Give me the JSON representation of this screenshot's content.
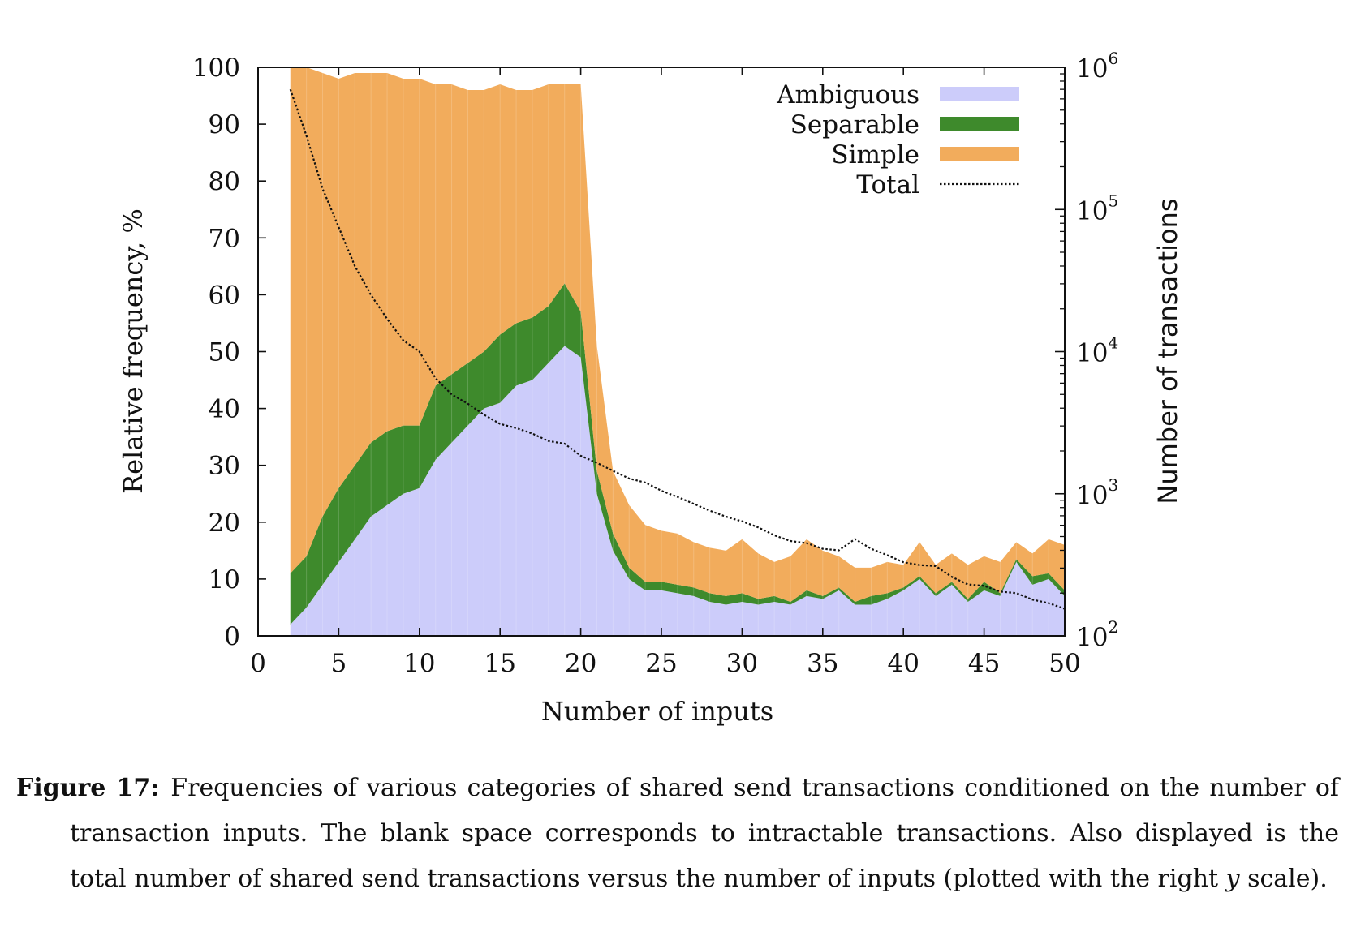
{
  "chart_data": {
    "type": "area",
    "stacked": true,
    "xlabel": "Number of inputs",
    "ylabel": "Relative frequency, %",
    "y2label": "Number of transactions",
    "xlim": [
      0,
      50
    ],
    "ylim": [
      0,
      100
    ],
    "y2lim": [
      100,
      1000000
    ],
    "y2scale": "log",
    "x_ticks": [
      "0",
      "5",
      "10",
      "15",
      "20",
      "25",
      "30",
      "35",
      "40",
      "45",
      "50"
    ],
    "y_ticks": [
      "0",
      "10",
      "20",
      "30",
      "40",
      "50",
      "60",
      "70",
      "80",
      "90",
      "100"
    ],
    "y2_ticks": [
      {
        "base": "10",
        "exp": "2"
      },
      {
        "base": "10",
        "exp": "3"
      },
      {
        "base": "10",
        "exp": "4"
      },
      {
        "base": "10",
        "exp": "5"
      },
      {
        "base": "10",
        "exp": "6"
      }
    ],
    "legend_position": "top-right",
    "grid": false,
    "x": [
      2,
      3,
      4,
      5,
      6,
      7,
      8,
      9,
      10,
      11,
      12,
      13,
      14,
      15,
      16,
      17,
      18,
      19,
      20,
      21,
      22,
      23,
      24,
      25,
      26,
      27,
      28,
      29,
      30,
      31,
      32,
      33,
      34,
      35,
      36,
      37,
      38,
      39,
      40,
      41,
      42,
      43,
      44,
      45,
      46,
      47,
      48,
      49,
      50
    ],
    "series": [
      {
        "name": "Ambiguous",
        "color": "#ccccfa",
        "values": [
          2,
          5,
          9,
          13,
          17,
          21,
          23,
          25,
          26,
          31,
          34,
          37,
          40,
          41,
          44,
          45,
          48,
          51,
          49,
          25,
          15,
          10,
          8,
          8,
          7.5,
          7,
          6,
          5.5,
          6,
          5.5,
          6,
          5.5,
          7,
          6.5,
          8,
          5.5,
          5.5,
          6.5,
          8,
          10,
          7,
          9,
          6,
          8,
          7,
          13,
          9,
          10,
          7
        ]
      },
      {
        "name": "Separable",
        "color": "#3e8a2c",
        "values": [
          9,
          9,
          12,
          13,
          13,
          13,
          13,
          12,
          11,
          13,
          12,
          11,
          10,
          12,
          11,
          11,
          10,
          11,
          8,
          4,
          3,
          2,
          1.5,
          1.5,
          1.5,
          1.5,
          1.5,
          1.5,
          1.5,
          1,
          1,
          0.5,
          1,
          0.5,
          0.5,
          0.5,
          1.5,
          1,
          0.5,
          0.5,
          0.5,
          0.5,
          0.5,
          1.5,
          0.5,
          0.5,
          1.5,
          1,
          1
        ]
      },
      {
        "name": "Simple",
        "color": "#f2ac5c",
        "values": [
          89,
          86,
          78,
          72,
          69,
          65,
          63,
          61,
          61,
          53,
          51,
          48,
          46,
          44,
          41,
          40,
          39,
          35,
          40,
          22,
          11,
          11,
          10,
          9,
          9,
          8,
          8,
          8,
          9.5,
          8,
          6,
          8,
          9,
          8,
          5.5,
          6,
          5,
          5.5,
          4,
          6,
          5,
          5,
          6,
          4.5,
          5.5,
          3,
          4,
          6,
          8
        ]
      },
      {
        "name": "Total",
        "color": "#111111",
        "axis": "right",
        "values": [
          700000,
          330000,
          140000,
          75000,
          40000,
          25000,
          17000,
          12000,
          10000,
          6500,
          5000,
          4300,
          3600,
          3100,
          2900,
          2650,
          2350,
          2250,
          1850,
          1650,
          1450,
          1280,
          1200,
          1050,
          950,
          850,
          760,
          690,
          640,
          580,
          510,
          465,
          450,
          410,
          400,
          480,
          410,
          370,
          330,
          315,
          310,
          260,
          230,
          225,
          205,
          200,
          180,
          170,
          155
        ]
      }
    ]
  },
  "caption": {
    "label": "Figure 17:",
    "text_before_var": "Frequencies of various categories of shared send transactions conditioned on the number of transaction inputs.  The blank space corresponds to intractable transactions.  Also displayed is the total number of shared send transactions versus the number of inputs (plotted with the right ",
    "var": "y",
    "text_after_var": " scale)."
  }
}
